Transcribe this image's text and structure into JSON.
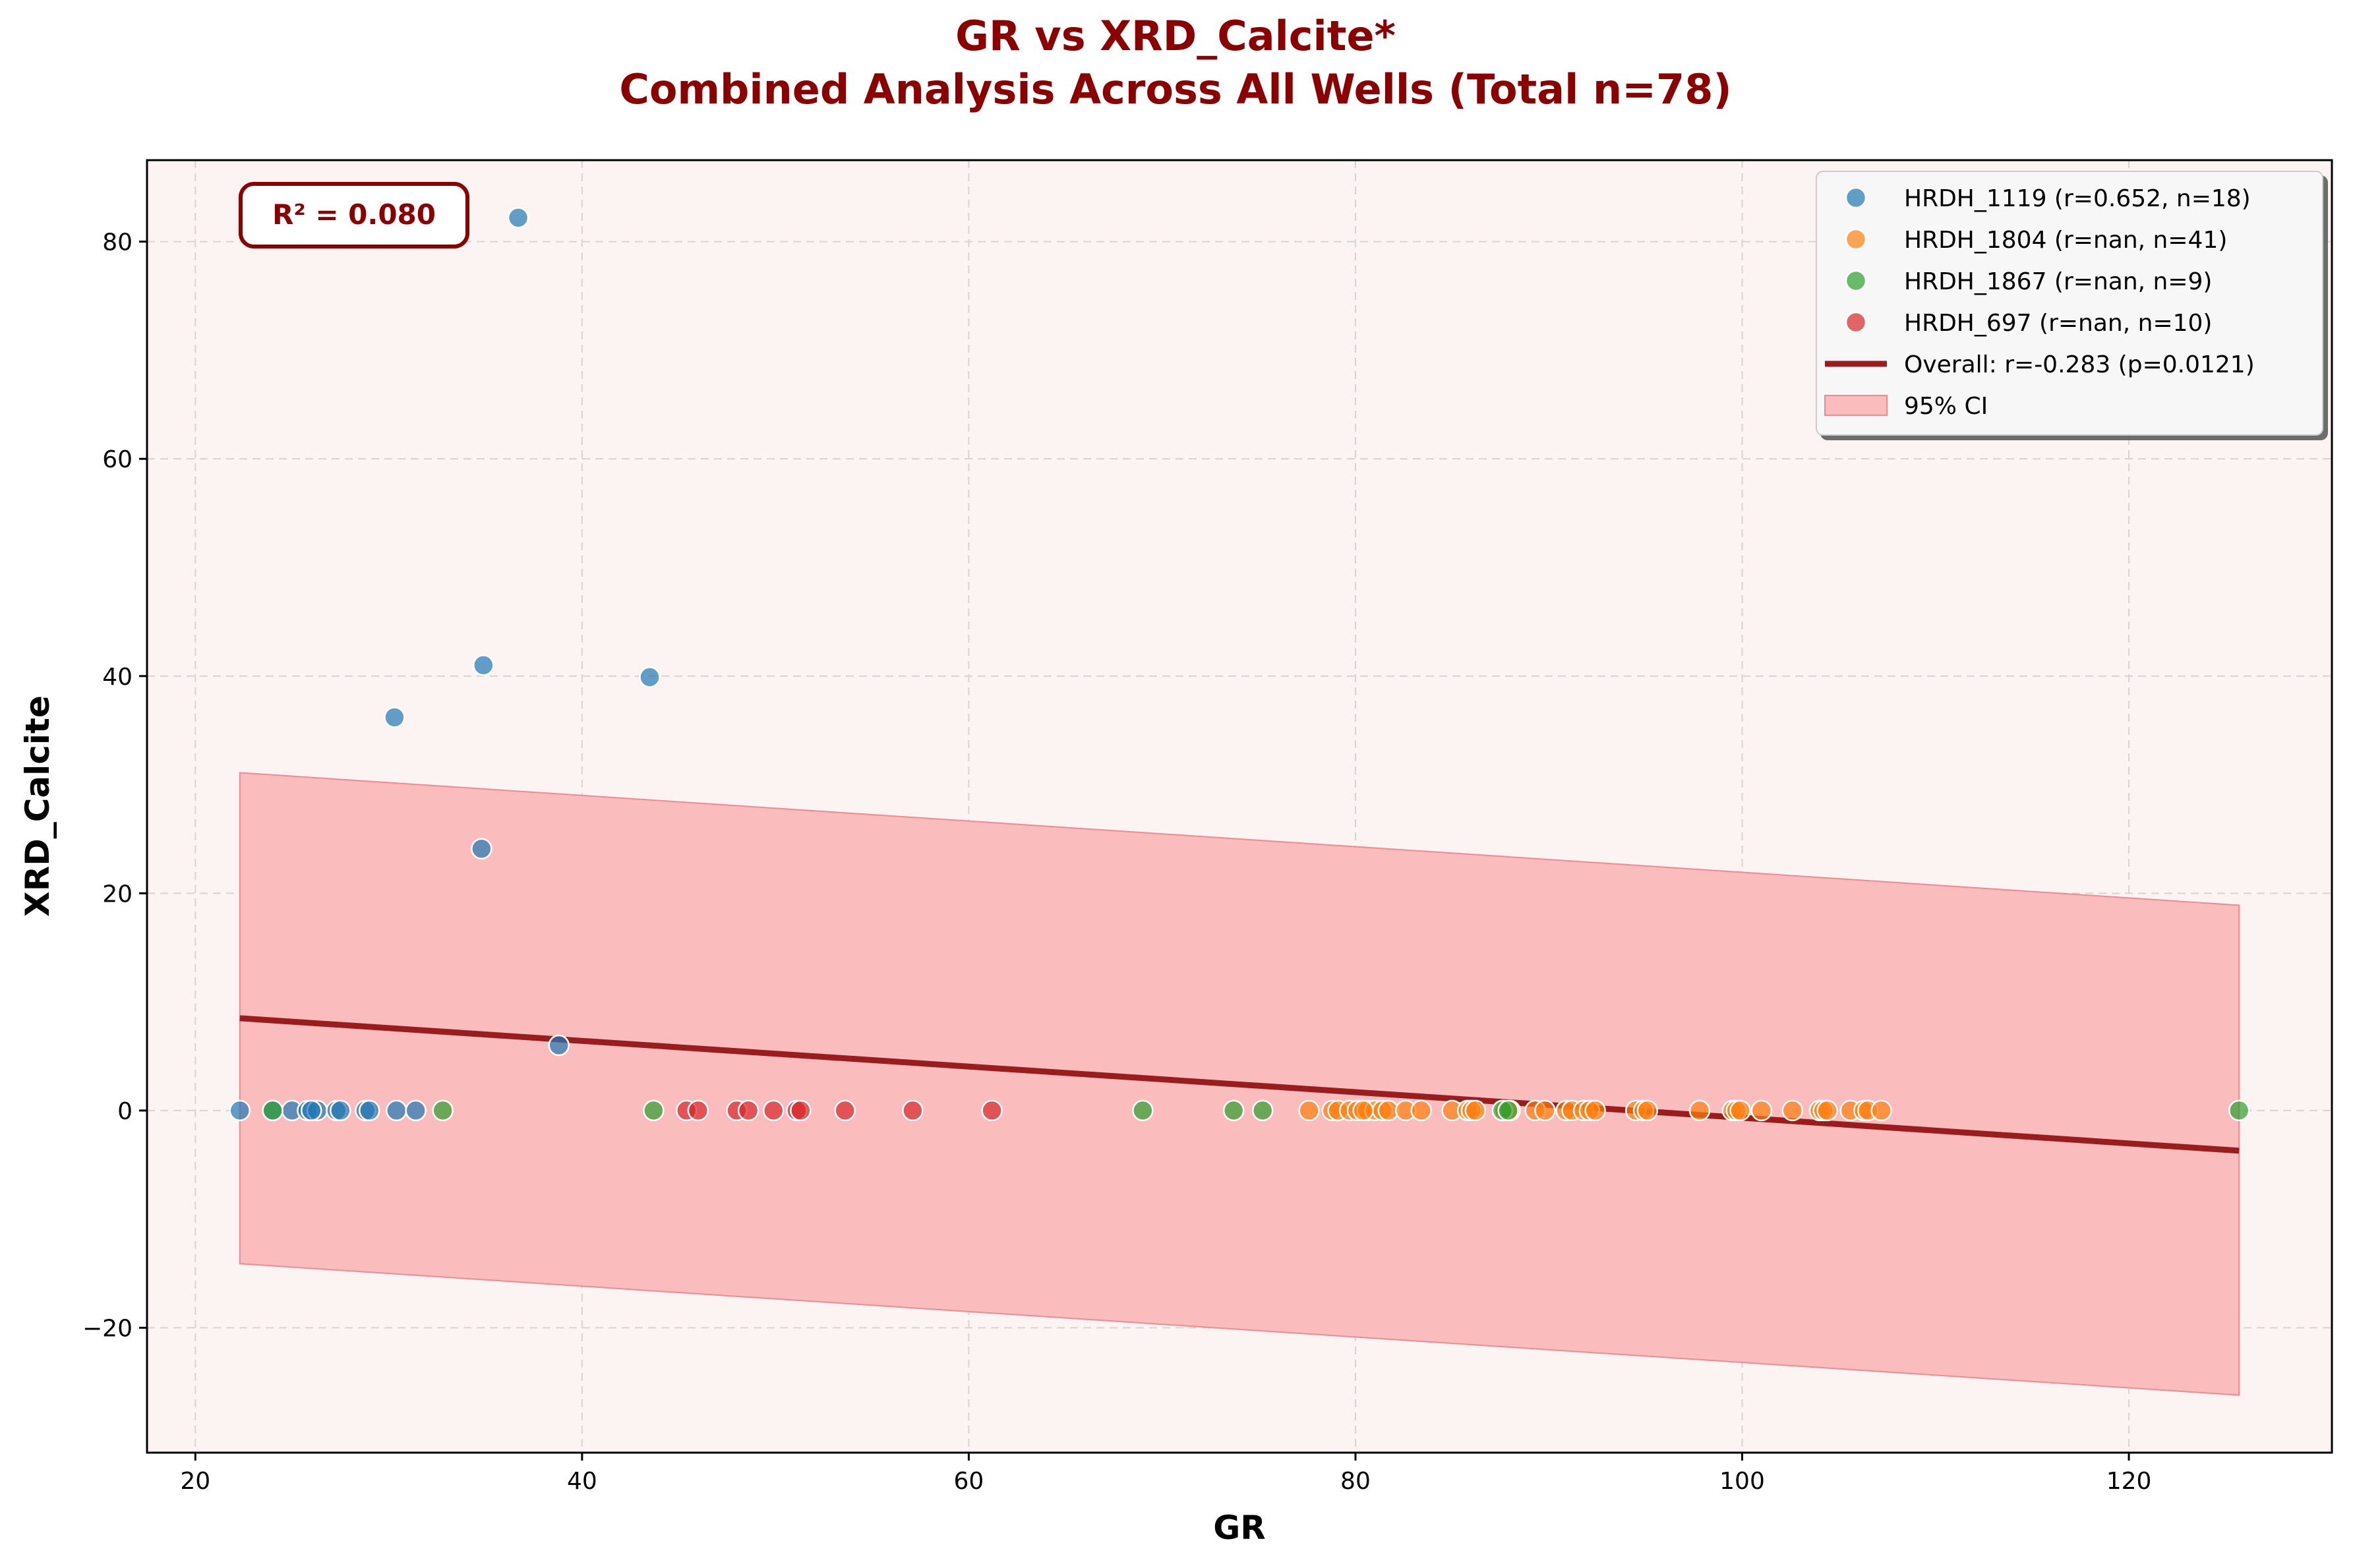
{
  "chart_data": {
    "type": "scatter",
    "title": "GR vs XRD_Calcite*",
    "subtitle": "Combined Analysis Across All Wells (Total n=78)",
    "xlabel": "GR",
    "ylabel": "XRD_Calcite",
    "xlim": [
      17.5,
      130.5
    ],
    "ylim": [
      -31.5,
      87.5
    ],
    "xticks": [
      20,
      40,
      60,
      80,
      100,
      120
    ],
    "yticks": [
      -20,
      0,
      20,
      40,
      60,
      80
    ],
    "xtick_labels": [
      "20",
      "40",
      "60",
      "80",
      "100",
      "120"
    ],
    "ytick_labels": [
      "−20",
      "0",
      "20",
      "40",
      "60",
      "80"
    ],
    "grid": true,
    "legend_position": "upper-right",
    "annotation": "R² = 0.080",
    "series": [
      {
        "name": "HRDH_1119 (r=0.652, n=18)",
        "color": "#1f77b4",
        "points": [
          [
            22.3,
            0
          ],
          [
            24.0,
            0
          ],
          [
            25.0,
            0
          ],
          [
            25.8,
            0
          ],
          [
            26.3,
            0
          ],
          [
            27.3,
            0
          ],
          [
            27.5,
            0
          ],
          [
            28.8,
            0
          ],
          [
            29.0,
            0
          ],
          [
            30.3,
            36.2
          ],
          [
            30.4,
            0
          ],
          [
            31.4,
            0
          ],
          [
            34.8,
            24.1
          ],
          [
            34.9,
            41
          ],
          [
            36.7,
            82.2
          ],
          [
            38.8,
            6
          ],
          [
            43.5,
            39.9
          ],
          [
            26.0,
            0
          ]
        ]
      },
      {
        "name": "HRDH_1804 (r=nan, n=41)",
        "color": "#ff7f0e",
        "points": [
          [
            77.6,
            0
          ],
          [
            78.8,
            0
          ],
          [
            79.1,
            0
          ],
          [
            79.7,
            0
          ],
          [
            80.1,
            0
          ],
          [
            80.6,
            0
          ],
          [
            81.0,
            0
          ],
          [
            81.4,
            0
          ],
          [
            81.7,
            0
          ],
          [
            82.6,
            0
          ],
          [
            83.4,
            0
          ],
          [
            85.0,
            0
          ],
          [
            85.8,
            0
          ],
          [
            86.0,
            0
          ],
          [
            87.7,
            0
          ],
          [
            89.3,
            0
          ],
          [
            89.8,
            0
          ],
          [
            90.9,
            0
          ],
          [
            91.2,
            0
          ],
          [
            91.8,
            0
          ],
          [
            92.1,
            0
          ],
          [
            94.5,
            0
          ],
          [
            94.9,
            0
          ],
          [
            95.1,
            0
          ],
          [
            97.8,
            0
          ],
          [
            99.5,
            0
          ],
          [
            99.7,
            0
          ],
          [
            101.0,
            0
          ],
          [
            102.6,
            0
          ],
          [
            104.0,
            0
          ],
          [
            104.2,
            0
          ],
          [
            105.6,
            0
          ],
          [
            106.3,
            0
          ],
          [
            106.5,
            0
          ],
          [
            107.2,
            0
          ],
          [
            88.0,
            0
          ],
          [
            86.2,
            0
          ],
          [
            80.4,
            0
          ],
          [
            92.4,
            0
          ],
          [
            99.9,
            0
          ],
          [
            104.4,
            0
          ]
        ]
      },
      {
        "name": "HRDH_1867 (r=nan, n=9)",
        "color": "#2ca02c",
        "points": [
          [
            24.0,
            0
          ],
          [
            32.8,
            0
          ],
          [
            43.7,
            0
          ],
          [
            69.0,
            0
          ],
          [
            73.7,
            0
          ],
          [
            75.2,
            0
          ],
          [
            87.6,
            0
          ],
          [
            87.9,
            0
          ],
          [
            125.7,
            0
          ]
        ]
      },
      {
        "name": "HRDH_697 (r=nan, n=10)",
        "color": "#d62728",
        "points": [
          [
            45.4,
            0
          ],
          [
            46.0,
            0
          ],
          [
            48.0,
            0
          ],
          [
            48.6,
            0
          ],
          [
            49.9,
            0
          ],
          [
            51.1,
            0
          ],
          [
            51.3,
            0
          ],
          [
            53.6,
            0
          ],
          [
            57.1,
            0
          ],
          [
            61.2,
            0
          ]
        ]
      }
    ],
    "regression": {
      "name": "Overall: r=-0.283 (p=0.0121)",
      "color": "#9b1c1c",
      "x": [
        22.3,
        125.7
      ],
      "y": [
        8.5,
        -3.7
      ]
    },
    "confidence_band": {
      "name": "95% CI",
      "color": "#f8a5a8",
      "x": [
        22.3,
        125.7
      ],
      "upper": [
        31.1,
        18.9
      ],
      "lower": [
        -14.1,
        -26.2
      ]
    }
  }
}
